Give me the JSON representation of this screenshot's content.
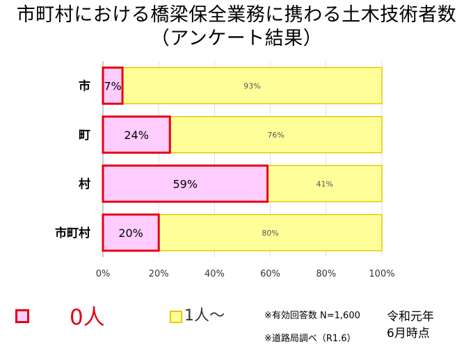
{
  "title": "市町村における橋梁保全業務に携わる土木技術者数",
  "subtitle": "（アンケート結果）",
  "chart_data": {
    "type": "bar",
    "orientation": "horizontal",
    "stacked": true,
    "percent_stacked": true,
    "categories": [
      "市",
      "町",
      "村",
      "市町村"
    ],
    "series": [
      {
        "name": "0人",
        "values": [
          7,
          24,
          59,
          20
        ],
        "labels": [
          "7%",
          "24%",
          "59%",
          "20%"
        ],
        "color": "#ffccff",
        "border": "#e60012"
      },
      {
        "name": "1人～",
        "values": [
          93,
          76,
          41,
          80
        ],
        "labels": [
          "93%",
          "76%",
          "41%",
          "80%"
        ],
        "color": "#ffff99",
        "border": "#e6c800"
      }
    ],
    "x_ticks": [
      "0%",
      "20%",
      "40%",
      "60%",
      "80%",
      "100%"
    ],
    "xlim": [
      0,
      100
    ],
    "grid": true,
    "legend_position": "bottom-left"
  },
  "legend": {
    "zero_label": "0人",
    "one_label": "1人～"
  },
  "notes": {
    "respondents": "※有効回答数 N=1,600",
    "source": "※道路局調べ（R1.6）",
    "date_line1": "令和元年",
    "date_line2": "6月時点"
  },
  "colors": {
    "accent_red": "#e60012",
    "zero_fill": "#ffccff",
    "one_fill": "#ffff99",
    "one_border": "#e6c800",
    "grid": "#dddddd"
  }
}
